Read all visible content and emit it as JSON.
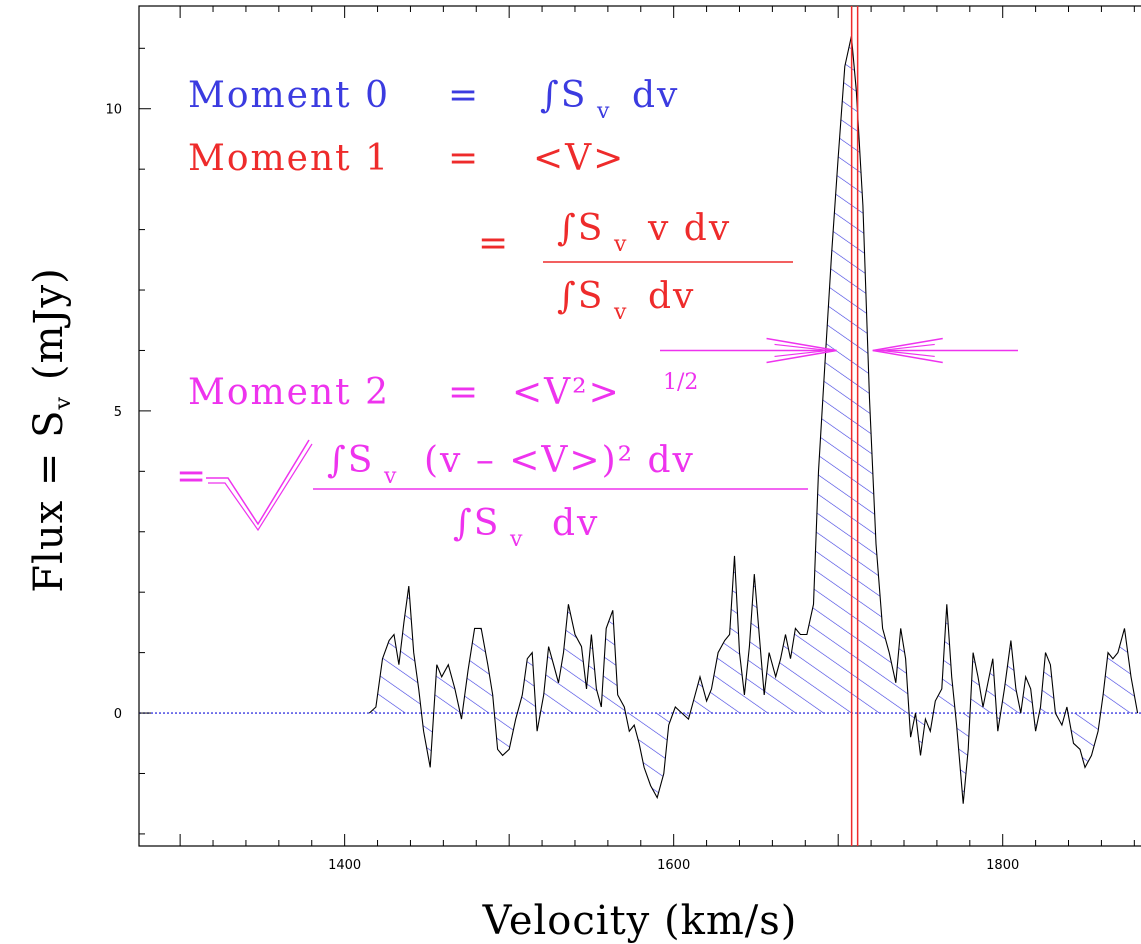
{
  "chart_data": {
    "type": "line",
    "xlabel": "Velocity (km/s)",
    "ylabel_main": "Flux = S",
    "ylabel_sub": "v",
    "ylabel_unit": "(mJy)",
    "xlim": [
      1275,
      1895
    ],
    "ylim": [
      -2.2,
      11.7
    ],
    "x_ticks": [
      1400,
      1600,
      1800
    ],
    "y_ticks": [
      0,
      5,
      10
    ],
    "grid": false,
    "legend": "none",
    "baseline": 0,
    "line_marker_velocity": 1710,
    "fwhm_arrows": {
      "left_velocity": 1699,
      "right_velocity": 1721,
      "flux": 6.0
    },
    "series": [
      {
        "color": "#000000",
        "fill": "blue-hatched",
        "points": [
          [
            1415,
            0.0
          ],
          [
            1419,
            0.1
          ],
          [
            1423,
            0.9
          ],
          [
            1427,
            1.2
          ],
          [
            1430,
            1.3
          ],
          [
            1433,
            0.8
          ],
          [
            1436,
            1.5
          ],
          [
            1439,
            2.1
          ],
          [
            1442,
            1.0
          ],
          [
            1445,
            0.4
          ],
          [
            1448,
            -0.3
          ],
          [
            1452,
            -0.9
          ],
          [
            1456,
            0.8
          ],
          [
            1459,
            0.6
          ],
          [
            1463,
            0.8
          ],
          [
            1467,
            0.4
          ],
          [
            1471,
            -0.1
          ],
          [
            1475,
            0.7
          ],
          [
            1479,
            1.4
          ],
          [
            1483,
            1.4
          ],
          [
            1487,
            0.8
          ],
          [
            1490,
            0.3
          ],
          [
            1493,
            -0.6
          ],
          [
            1496,
            -0.7
          ],
          [
            1500,
            -0.6
          ],
          [
            1504,
            -0.1
          ],
          [
            1508,
            0.3
          ],
          [
            1511,
            0.9
          ],
          [
            1514,
            1.0
          ],
          [
            1517,
            -0.3
          ],
          [
            1521,
            0.3
          ],
          [
            1524,
            1.1
          ],
          [
            1527,
            0.8
          ],
          [
            1530,
            0.5
          ],
          [
            1533,
            1.0
          ],
          [
            1536,
            1.8
          ],
          [
            1540,
            1.3
          ],
          [
            1544,
            1.1
          ],
          [
            1547,
            0.4
          ],
          [
            1550,
            1.3
          ],
          [
            1553,
            0.4
          ],
          [
            1556,
            0.1
          ],
          [
            1559,
            1.4
          ],
          [
            1563,
            1.7
          ],
          [
            1566,
            0.3
          ],
          [
            1570,
            0.1
          ],
          [
            1573,
            -0.3
          ],
          [
            1576,
            -0.2
          ],
          [
            1579,
            -0.5
          ],
          [
            1582,
            -0.9
          ],
          [
            1586,
            -1.2
          ],
          [
            1590,
            -1.4
          ],
          [
            1594,
            -1.0
          ],
          [
            1597,
            -0.2
          ],
          [
            1601,
            0.1
          ],
          [
            1605,
            0.0
          ],
          [
            1609,
            -0.1
          ],
          [
            1613,
            0.3
          ],
          [
            1616,
            0.6
          ],
          [
            1620,
            0.2
          ],
          [
            1623,
            0.4
          ],
          [
            1627,
            1.0
          ],
          [
            1631,
            1.2
          ],
          [
            1634,
            1.3
          ],
          [
            1637,
            2.6
          ],
          [
            1640,
            1.0
          ],
          [
            1643,
            0.3
          ],
          [
            1646,
            1.1
          ],
          [
            1649,
            2.3
          ],
          [
            1652,
            1.3
          ],
          [
            1655,
            0.3
          ],
          [
            1658,
            1.0
          ],
          [
            1662,
            0.6
          ],
          [
            1665,
            0.9
          ],
          [
            1668,
            1.3
          ],
          [
            1671,
            0.9
          ],
          [
            1674,
            1.4
          ],
          [
            1677,
            1.3
          ],
          [
            1681,
            1.3
          ],
          [
            1685,
            1.8
          ],
          [
            1688,
            4.0
          ],
          [
            1692,
            5.8
          ],
          [
            1696,
            7.6
          ],
          [
            1700,
            9.2
          ],
          [
            1704,
            10.7
          ],
          [
            1708,
            11.2
          ],
          [
            1711,
            10.3
          ],
          [
            1715,
            8.4
          ],
          [
            1719,
            5.2
          ],
          [
            1723,
            2.8
          ],
          [
            1727,
            1.4
          ],
          [
            1731,
            1.0
          ],
          [
            1735,
            0.5
          ],
          [
            1738,
            1.4
          ],
          [
            1741,
            0.9
          ],
          [
            1744,
            -0.4
          ],
          [
            1747,
            0.0
          ],
          [
            1750,
            -0.7
          ],
          [
            1753,
            -0.1
          ],
          [
            1756,
            -0.3
          ],
          [
            1759,
            0.2
          ],
          [
            1763,
            0.4
          ],
          [
            1766,
            1.8
          ],
          [
            1769,
            0.6
          ],
          [
            1772,
            -0.2
          ],
          [
            1776,
            -1.5
          ],
          [
            1779,
            -0.6
          ],
          [
            1782,
            1.0
          ],
          [
            1785,
            0.6
          ],
          [
            1788,
            0.1
          ],
          [
            1791,
            0.5
          ],
          [
            1794,
            0.9
          ],
          [
            1797,
            -0.3
          ],
          [
            1801,
            0.4
          ],
          [
            1805,
            1.2
          ],
          [
            1808,
            0.4
          ],
          [
            1811,
            0.0
          ],
          [
            1814,
            0.6
          ],
          [
            1817,
            0.4
          ],
          [
            1820,
            -0.3
          ],
          [
            1823,
            0.1
          ],
          [
            1826,
            1.0
          ],
          [
            1829,
            0.8
          ],
          [
            1832,
            0.0
          ],
          [
            1836,
            -0.2
          ],
          [
            1839,
            0.1
          ],
          [
            1843,
            -0.5
          ],
          [
            1847,
            -0.6
          ],
          [
            1850,
            -0.9
          ],
          [
            1854,
            -0.7
          ],
          [
            1858,
            -0.3
          ],
          [
            1861,
            0.3
          ],
          [
            1864,
            1.0
          ],
          [
            1867,
            0.9
          ],
          [
            1870,
            1.0
          ],
          [
            1874,
            1.4
          ],
          [
            1878,
            0.6
          ],
          [
            1882,
            0.0
          ]
        ]
      }
    ],
    "annotations": {
      "m0_label": "Moment 0",
      "m0_eq": "=",
      "m0_integral": "∫S",
      "m0_sub": "v",
      "m0_tail": "dv",
      "m1_label": "Moment 1",
      "m1_eq": "=",
      "m1_mean": "<V>",
      "m1_eq2": "=",
      "m1_num_integral": "∫S",
      "m1_num_sub": "v",
      "m1_num_tail": "v  dv",
      "m1_den_integral": "∫S",
      "m1_den_sub": "v",
      "m1_den_tail": "dv",
      "m2_label": "Moment 2",
      "m2_eq": "=",
      "m2_mean": "<V²>",
      "m2_sup": "1/2",
      "m2_eq2": "=",
      "m2_num_integral": "∫S",
      "m2_num_sub": "v",
      "m2_num_tail": "(v  –  <V>)² dv",
      "m2_den_integral": "∫S",
      "m2_den_sub": "v",
      "m2_den_tail": "dv"
    }
  },
  "colors": {
    "moment0": "#3b3be0",
    "moment1": "#ee2b2b",
    "moment2": "#ee33ee",
    "hatch": "#3b3be0"
  }
}
